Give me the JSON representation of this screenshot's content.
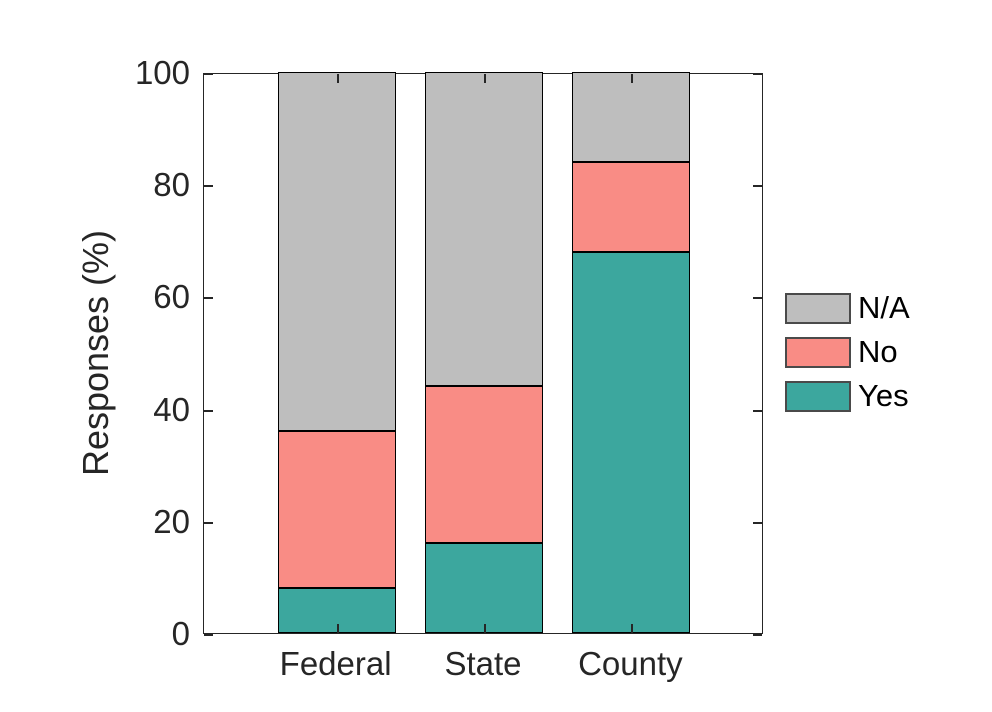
{
  "chart_data": {
    "type": "bar",
    "stacked": true,
    "title": "",
    "xlabel": "",
    "ylabel": "Responses (%)",
    "categories": [
      "Federal",
      "State",
      "County"
    ],
    "series": [
      {
        "name": "Yes",
        "color": "#3CA79E",
        "values": [
          8,
          16,
          68
        ]
      },
      {
        "name": "No",
        "color": "#F98C85",
        "values": [
          28,
          28,
          16
        ]
      },
      {
        "name": "N/A",
        "color": "#BEBEBE",
        "values": [
          64,
          56,
          16
        ]
      }
    ],
    "ylim": [
      0,
      100
    ],
    "yticks": [
      0,
      20,
      40,
      60,
      80,
      100
    ],
    "xlim": [
      0.1,
      3.9
    ],
    "bar_width_fraction": 0.8,
    "grid": false,
    "legend": {
      "position": "right-outside-middle",
      "entries": [
        {
          "label": "N/A",
          "color": "#BEBEBE"
        },
        {
          "label": "No",
          "color": "#F98C85"
        },
        {
          "label": "Yes",
          "color": "#3CA79E"
        }
      ]
    },
    "axis_color": "#262626",
    "bar_edge_color": "#000000",
    "background": "#ffffff"
  }
}
